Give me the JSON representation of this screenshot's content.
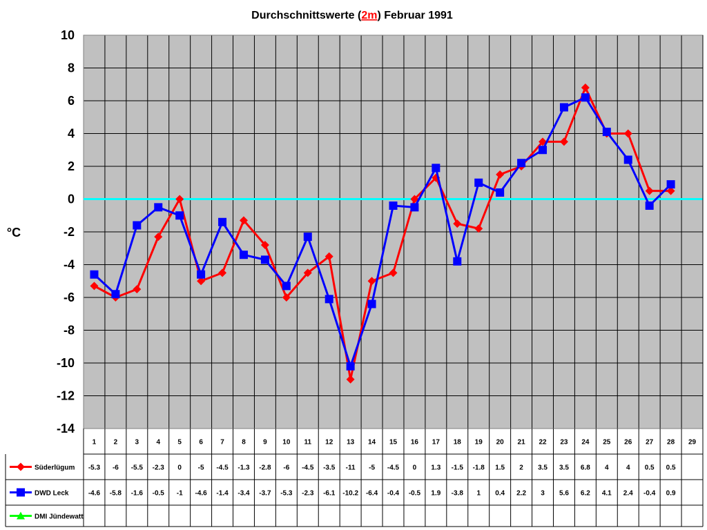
{
  "chart_data": {
    "type": "line",
    "title_parts": {
      "before": "Durchschnittswerte (",
      "highlight": "2m",
      "after": ") Februar 1991"
    },
    "ylabel": "°C",
    "ylim": [
      -14,
      10
    ],
    "ytick_step": 2,
    "yticks": [
      "10",
      "8",
      "6",
      "4",
      "2",
      "0",
      "-2",
      "-4",
      "-6",
      "-8",
      "-10",
      "-12",
      "-14"
    ],
    "categories": [
      "1",
      "2",
      "3",
      "4",
      "5",
      "6",
      "7",
      "8",
      "9",
      "10",
      "11",
      "12",
      "13",
      "14",
      "15",
      "16",
      "17",
      "18",
      "19",
      "20",
      "21",
      "22",
      "23",
      "24",
      "25",
      "26",
      "27",
      "28",
      "29"
    ],
    "zero_line_color": "#00ffff",
    "plot_background": "#c0c0c0",
    "grid": true,
    "series": [
      {
        "name": "Süderlügum",
        "color": "#ff0000",
        "marker": "diamond",
        "values": [
          -5.3,
          -6,
          -5.5,
          -2.3,
          0,
          -5,
          -4.5,
          -1.3,
          -2.8,
          -6,
          -4.5,
          -3.5,
          -11,
          -5,
          -4.5,
          0,
          1.3,
          -1.5,
          -1.8,
          1.5,
          2,
          3.5,
          3.5,
          6.8,
          4,
          4,
          0.5,
          0.5,
          null
        ],
        "labels": [
          "-5.3",
          "-6",
          "-5.5",
          "-2.3",
          "0",
          "-5",
          "-4.5",
          "-1.3",
          "-2.8",
          "-6",
          "-4.5",
          "-3.5",
          "-11",
          "-5",
          "-4.5",
          "0",
          "1.3",
          "-1.5",
          "-1.8",
          "1.5",
          "2",
          "3.5",
          "3.5",
          "6.8",
          "4",
          "4",
          "0.5",
          "0.5",
          ""
        ]
      },
      {
        "name": "DWD Leck",
        "color": "#0000ff",
        "marker": "square",
        "values": [
          -4.6,
          -5.8,
          -1.6,
          -0.5,
          -1,
          -4.6,
          -1.4,
          -3.4,
          -3.7,
          -5.3,
          -2.3,
          -6.1,
          -10.2,
          -6.4,
          -0.4,
          -0.5,
          1.9,
          -3.8,
          1,
          0.4,
          2.2,
          3,
          5.6,
          6.2,
          4.1,
          2.4,
          -0.4,
          0.9,
          null
        ],
        "labels": [
          "-4.6",
          "-5.8",
          "-1.6",
          "-0.5",
          "-1",
          "-4.6",
          "-1.4",
          "-3.4",
          "-3.7",
          "-5.3",
          "-2.3",
          "-6.1",
          "-10.2",
          "-6.4",
          "-0.4",
          "-0.5",
          "1.9",
          "-3.8",
          "1",
          "0.4",
          "2.2",
          "3",
          "5.6",
          "6.2",
          "4.1",
          "2.4",
          "-0.4",
          "0.9",
          ""
        ]
      },
      {
        "name": "DMI Jündewatt",
        "color": "#00ff00",
        "marker": "triangle",
        "values": [
          null,
          null,
          null,
          null,
          null,
          null,
          null,
          null,
          null,
          null,
          null,
          null,
          null,
          null,
          null,
          null,
          null,
          null,
          null,
          null,
          null,
          null,
          null,
          null,
          null,
          null,
          null,
          null,
          null
        ],
        "labels": [
          "",
          "",
          "",
          "",
          "",
          "",
          "",
          "",
          "",
          "",
          "",
          "",
          "",
          "",
          "",
          "",
          "",
          "",
          "",
          "",
          "",
          "",
          "",
          "",
          "",
          "",
          "",
          "",
          ""
        ]
      }
    ]
  }
}
